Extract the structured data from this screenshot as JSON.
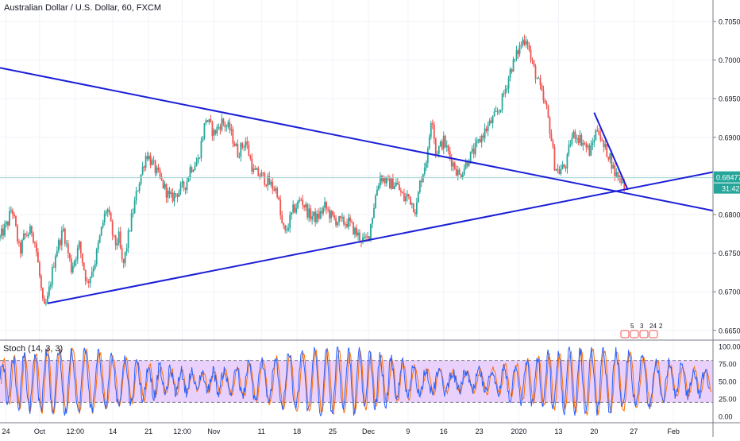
{
  "header": {
    "title": "Australian Dollar / U.S. Dollar, 60, FXCM"
  },
  "chart_data": [
    {
      "type": "line",
      "title": "Australian Dollar / U.S. Dollar, 60, FXCM",
      "ylim": [
        0.664,
        0.7065
      ],
      "y_ticks": [
        "0.70500",
        "0.70000",
        "0.69500",
        "0.69000",
        "0.68500",
        "0.68000",
        "0.67500",
        "0.67000",
        "0.66500"
      ],
      "y_tick_values": [
        0.705,
        0.7,
        0.695,
        0.69,
        0.685,
        0.68,
        0.675,
        0.67,
        0.665
      ],
      "x_ticks": [
        "24",
        "Oct",
        "12:00",
        "14",
        "21",
        "12:00",
        "Nov",
        "11",
        "18",
        "25",
        "Dec",
        "9",
        "16",
        "23",
        "2020",
        "13",
        "20",
        "27",
        "Feb"
      ],
      "x_tick_index": [
        1.5,
        10,
        19,
        28.5,
        37.5,
        46,
        54,
        66,
        75,
        84,
        93,
        103,
        112,
        121,
        131,
        141,
        150,
        160,
        170
      ],
      "x_range": [
        0,
        180
      ],
      "price_label": "0.68477",
      "countdown_label": "31:42",
      "current_price": 0.68477,
      "event_markers": [
        "5",
        "3",
        "24",
        "2"
      ],
      "price_path": [
        [
          0,
          0.677
        ],
        [
          2,
          0.679
        ],
        [
          3,
          0.681
        ],
        [
          5,
          0.675
        ],
        [
          6,
          0.677
        ],
        [
          8,
          0.678
        ],
        [
          9,
          0.676
        ],
        [
          10,
          0.672
        ],
        [
          11,
          0.6675
        ],
        [
          12,
          0.669
        ],
        [
          14,
          0.675
        ],
        [
          16,
          0.678
        ],
        [
          18,
          0.673
        ],
        [
          20,
          0.676
        ],
        [
          22,
          0.671
        ],
        [
          24,
          0.674
        ],
        [
          26,
          0.679
        ],
        [
          27,
          0.681
        ],
        [
          29,
          0.676
        ],
        [
          30,
          0.677
        ],
        [
          31,
          0.673
        ],
        [
          33,
          0.679
        ],
        [
          35,
          0.684
        ],
        [
          37,
          0.688
        ],
        [
          39,
          0.686
        ],
        [
          41,
          0.684
        ],
        [
          43,
          0.682
        ],
        [
          45,
          0.683
        ],
        [
          47,
          0.684
        ],
        [
          48,
          0.686
        ],
        [
          50,
          0.687
        ],
        [
          52,
          0.6925
        ],
        [
          54,
          0.6905
        ],
        [
          56,
          0.692
        ],
        [
          58,
          0.691
        ],
        [
          60,
          0.688
        ],
        [
          62,
          0.6895
        ],
        [
          64,
          0.6855
        ],
        [
          66,
          0.685
        ],
        [
          68,
          0.684
        ],
        [
          70,
          0.683
        ],
        [
          71,
          0.679
        ],
        [
          72,
          0.6775
        ],
        [
          74,
          0.6805
        ],
        [
          76,
          0.682
        ],
        [
          78,
          0.68
        ],
        [
          80,
          0.6795
        ],
        [
          82,
          0.681
        ],
        [
          84,
          0.6795
        ],
        [
          86,
          0.679
        ],
        [
          88,
          0.679
        ],
        [
          90,
          0.6775
        ],
        [
          92,
          0.6765
        ],
        [
          93,
          0.677
        ],
        [
          95,
          0.683
        ],
        [
          96,
          0.685
        ],
        [
          98,
          0.684
        ],
        [
          100,
          0.684
        ],
        [
          102,
          0.682
        ],
        [
          103,
          0.6825
        ],
        [
          105,
          0.6805
        ],
        [
          106,
          0.684
        ],
        [
          108,
          0.688
        ],
        [
          109,
          0.6935
        ],
        [
          110,
          0.688
        ],
        [
          112,
          0.6895
        ],
        [
          114,
          0.687
        ],
        [
          116,
          0.685
        ],
        [
          118,
          0.687
        ],
        [
          120,
          0.6885
        ],
        [
          122,
          0.6905
        ],
        [
          124,
          0.692
        ],
        [
          126,
          0.6935
        ],
        [
          128,
          0.697
        ],
        [
          129,
          0.699
        ],
        [
          130,
          0.7
        ],
        [
          131,
          0.7015
        ],
        [
          132,
          0.7025
        ],
        [
          133,
          0.703
        ],
        [
          134,
          0.7
        ],
        [
          136,
          0.697
        ],
        [
          137,
          0.695
        ],
        [
          138,
          0.6935
        ],
        [
          139,
          0.6905
        ],
        [
          140,
          0.6865
        ],
        [
          141,
          0.6855
        ],
        [
          143,
          0.6865
        ],
        [
          144,
          0.6895
        ],
        [
          145,
          0.6905
        ],
        [
          147,
          0.6895
        ],
        [
          149,
          0.688
        ],
        [
          150,
          0.69
        ],
        [
          151,
          0.6915
        ],
        [
          152,
          0.689
        ],
        [
          154,
          0.6875
        ],
        [
          155,
          0.6855
        ],
        [
          156,
          0.685
        ],
        [
          157,
          0.6845
        ],
        [
          158,
          0.6835
        ]
      ]
    },
    {
      "type": "line",
      "title": "Stoch (14, 3, 3)",
      "ylim": [
        -4,
        104
      ],
      "y_ticks": [
        "100.00",
        "75.00",
        "50.00",
        "25.00",
        "0.00"
      ],
      "y_tick_values": [
        100,
        75,
        50,
        25,
        0
      ],
      "upper_band": 80,
      "lower_band": 20,
      "oscillation_cycles": 30
    }
  ],
  "drawings": {
    "description_units": "bar index / price",
    "lines": [
      {
        "name": "descending-resistance",
        "from": [
          0,
          0.699
        ],
        "to": [
          180,
          0.6805
        ]
      },
      {
        "name": "ascending-support",
        "from": [
          12,
          0.6685
        ],
        "to": [
          180,
          0.6855
        ]
      },
      {
        "name": "short-downtrend",
        "from": [
          150,
          0.6932
        ],
        "to": [
          158.5,
          0.6832
        ]
      }
    ],
    "colors": {
      "trendline": "#1b1fd6",
      "candle_up": "#26a69a",
      "candle_down": "#ef5350",
      "price_line": "#9fd3d2",
      "price_label_bg": "#26a69a",
      "stoch_band_fill": "#e6c9fb",
      "stoch_k": "#2962ff",
      "stoch_d": "#ff6d00",
      "grid": "#f0f3fa"
    }
  }
}
